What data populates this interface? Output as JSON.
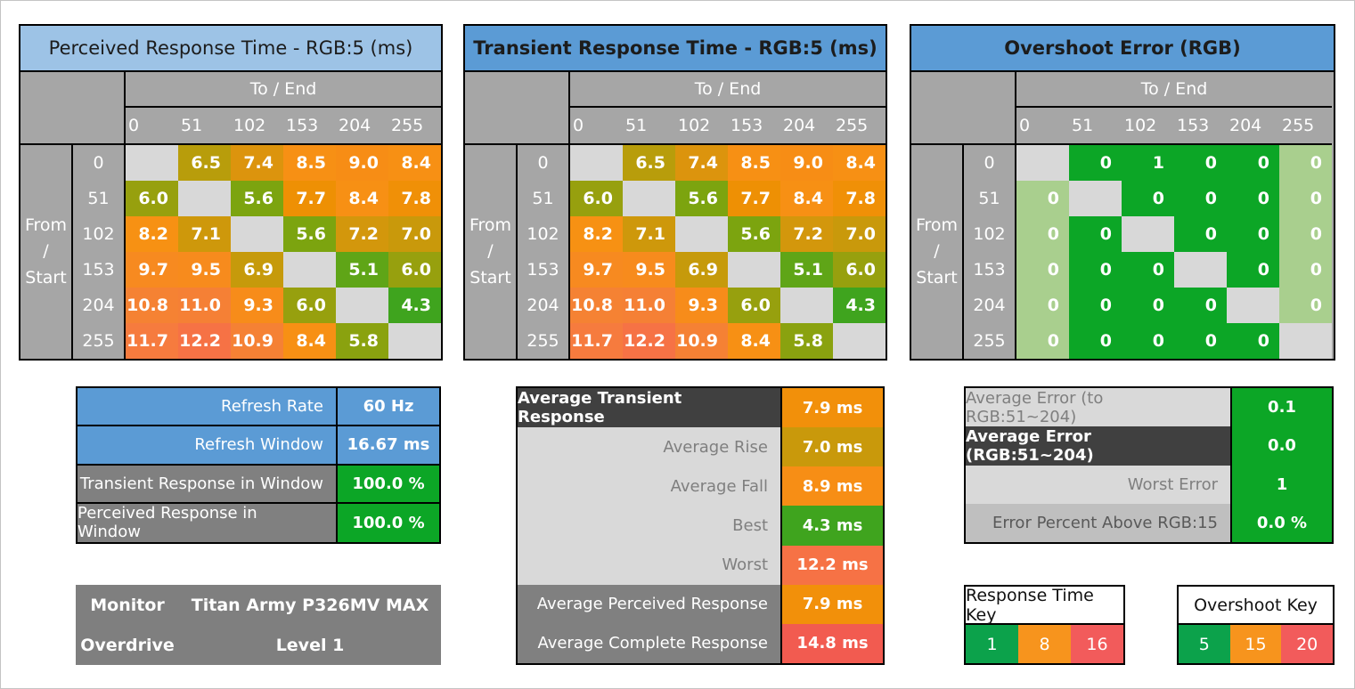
{
  "tables": [
    {
      "id": "perceived",
      "title": "Perceived Response Time - RGB:5 (ms)",
      "title_bold": false,
      "title_bg": "#9DC3E6"
    },
    {
      "id": "transient",
      "title": "Transient Response Time - RGB:5 (ms)",
      "title_bold": true,
      "title_bg": "#5B9BD5"
    },
    {
      "id": "overshoot",
      "title": "Overshoot Error (RGB)",
      "title_bold": true,
      "title_bg": "#5B9BD5"
    }
  ],
  "axis": {
    "to_label": "To / End",
    "from_lines": [
      "From",
      "/",
      "Start"
    ],
    "levels": [
      "0",
      "51",
      "102",
      "153",
      "204",
      "255"
    ]
  },
  "chart_data": [
    {
      "type": "heatmap",
      "id": "perceived",
      "title": "Perceived Response Time - RGB:5 (ms)",
      "xlabel": "To / End",
      "ylabel": "From / Start",
      "x_categories": [
        0,
        51,
        102,
        153,
        204,
        255
      ],
      "y_categories": [
        0,
        51,
        102,
        153,
        204,
        255
      ],
      "unit": "ms",
      "values": [
        [
          null,
          6.5,
          7.4,
          8.5,
          9.0,
          8.4
        ],
        [
          6.0,
          null,
          5.6,
          7.7,
          8.4,
          7.8
        ],
        [
          8.2,
          7.1,
          null,
          5.6,
          7.2,
          7.0
        ],
        [
          9.7,
          9.5,
          6.9,
          null,
          5.1,
          6.0
        ],
        [
          10.8,
          11.0,
          9.3,
          6.0,
          null,
          4.3
        ],
        [
          11.7,
          12.2,
          10.9,
          8.4,
          5.8,
          null
        ]
      ]
    },
    {
      "type": "heatmap",
      "id": "transient",
      "title": "Transient Response Time - RGB:5 (ms)",
      "xlabel": "To / End",
      "ylabel": "From / Start",
      "x_categories": [
        0,
        51,
        102,
        153,
        204,
        255
      ],
      "y_categories": [
        0,
        51,
        102,
        153,
        204,
        255
      ],
      "unit": "ms",
      "values": [
        [
          null,
          6.5,
          7.4,
          8.5,
          9.0,
          8.4
        ],
        [
          6.0,
          null,
          5.6,
          7.7,
          8.4,
          7.8
        ],
        [
          8.2,
          7.1,
          null,
          5.6,
          7.2,
          7.0
        ],
        [
          9.7,
          9.5,
          6.9,
          null,
          5.1,
          6.0
        ],
        [
          10.8,
          11.0,
          9.3,
          6.0,
          null,
          4.3
        ],
        [
          11.7,
          12.2,
          10.9,
          8.4,
          5.8,
          null
        ]
      ]
    },
    {
      "type": "heatmap",
      "id": "overshoot",
      "title": "Overshoot Error (RGB)",
      "xlabel": "To / End",
      "ylabel": "From / Start",
      "x_categories": [
        0,
        51,
        102,
        153,
        204,
        255
      ],
      "y_categories": [
        0,
        51,
        102,
        153,
        204,
        255
      ],
      "unit": "RGB",
      "values": [
        [
          null,
          0,
          1,
          0,
          0,
          0
        ],
        [
          0,
          null,
          0,
          0,
          0,
          0
        ],
        [
          0,
          0,
          null,
          0,
          0,
          0
        ],
        [
          0,
          0,
          0,
          null,
          0,
          0
        ],
        [
          0,
          0,
          0,
          0,
          null,
          0
        ],
        [
          0,
          0,
          0,
          0,
          0,
          null
        ]
      ]
    }
  ],
  "refresh_summary": {
    "rows": [
      {
        "label": "Refresh Rate",
        "value": "60 Hz",
        "style": "blue"
      },
      {
        "label": "Refresh Window",
        "value": "16.67 ms",
        "style": "blue"
      },
      {
        "label": "Transient Response in Window",
        "value": "100.0 %",
        "style": "green"
      },
      {
        "label": "Perceived Response in Window",
        "value": "100.0 %",
        "style": "green"
      }
    ]
  },
  "monitor_info": {
    "rows": [
      {
        "label": "Monitor",
        "value": "Titan Army P326MV MAX"
      },
      {
        "label": "Overdrive",
        "value": "Level 1"
      }
    ]
  },
  "response_summary": {
    "rows": [
      {
        "label": "Average Transient Response",
        "value": "7.9 ms",
        "num": 7.9,
        "label_style": "dark"
      },
      {
        "label": "Average Rise",
        "value": "7.0 ms",
        "num": 7.0,
        "label_style": "light"
      },
      {
        "label": "Average Fall",
        "value": "8.9 ms",
        "num": 8.9,
        "label_style": "light"
      },
      {
        "label": "Best",
        "value": "4.3 ms",
        "num": 4.3,
        "label_style": "light"
      },
      {
        "label": "Worst",
        "value": "12.2 ms",
        "num": 12.2,
        "label_style": "light"
      },
      {
        "label": "Average Perceived Response",
        "value": "7.9 ms",
        "num": 7.9,
        "label_style": "medium"
      },
      {
        "label": "Average Complete Response",
        "value": "14.8 ms",
        "num": 14.8,
        "label_style": "medium"
      }
    ]
  },
  "error_summary": {
    "rows": [
      {
        "label": "Average Error (to RGB:51~204)",
        "value": "0.1",
        "label_style": "light"
      },
      {
        "label": "Average Error (RGB:51~204)",
        "value": "0.0",
        "label_style": "dark"
      },
      {
        "label": "Worst Error",
        "value": "1",
        "label_style": "light"
      },
      {
        "label": "Error Percent Above RGB:15",
        "value": "0.0 %",
        "label_style": "light2"
      }
    ]
  },
  "keys": {
    "response": {
      "title": "Response Time Key",
      "stops": [
        {
          "label": "1",
          "color": "#0CA24B"
        },
        {
          "label": "8",
          "color": "#F7941D"
        },
        {
          "label": "16",
          "color": "#F25B5B"
        }
      ]
    },
    "overshoot": {
      "title": "Overshoot Key",
      "stops": [
        {
          "label": "5",
          "color": "#0CA24B"
        },
        {
          "label": "15",
          "color": "#F7941D"
        },
        {
          "label": "20",
          "color": "#F25B5B"
        }
      ]
    }
  },
  "colors": {
    "title_light_blue": "#9DC3E6",
    "title_blue": "#5B9BD5",
    "header_gray": "#A6A6A6",
    "diagonal_gray": "#D8D8D8",
    "green": "#0CA626",
    "light_green": "#A9CF8E",
    "blue_row": "#5B9BD5",
    "dark_row": "#404040",
    "medium_row": "#808080",
    "light_row": "#D9D9D9",
    "light2_row": "#BFBFBF",
    "light_row_text": "#7F7F7F",
    "light2_row_text": "#595959",
    "monitor_bg": "#7F7F7F",
    "gradient": [
      [
        1,
        "#0CA24B"
      ],
      [
        4.3,
        "#3FA41E"
      ],
      [
        5.1,
        "#5FA517"
      ],
      [
        5.6,
        "#7CA40F"
      ],
      [
        6.0,
        "#97A00E"
      ],
      [
        6.5,
        "#B89D0B"
      ],
      [
        7.0,
        "#C9990B"
      ],
      [
        7.4,
        "#DC940D"
      ],
      [
        7.7,
        "#EE9004"
      ],
      [
        8.2,
        "#F79113"
      ],
      [
        9.0,
        "#F78D15"
      ],
      [
        9.7,
        "#F78A20"
      ],
      [
        10.8,
        "#F58233"
      ],
      [
        11.7,
        "#F67B3E"
      ],
      [
        12.2,
        "#F67245"
      ],
      [
        14.8,
        "#F25B50"
      ],
      [
        16,
        "#F05555"
      ]
    ]
  }
}
